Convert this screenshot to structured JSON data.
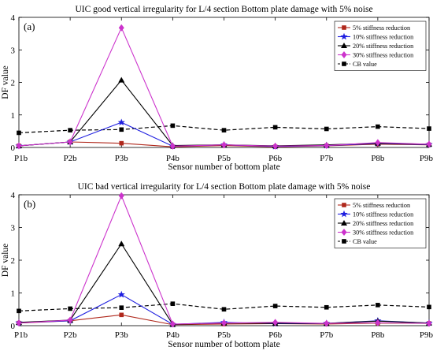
{
  "chart_data": [
    {
      "type": "line",
      "panel_label": "(a)",
      "title": "UIC good vertical irregularity for L/4 section Bottom plate damage with 5% noise",
      "xlabel": "Sensor number of  bottom plate",
      "ylabel": "DF value",
      "categories": [
        "P1b",
        "P2b",
        "P3b",
        "P4b",
        "P5b",
        "P6b",
        "P7b",
        "P8b",
        "P9b"
      ],
      "ylim": [
        0,
        4
      ],
      "yticks": [
        "0",
        "1",
        "2",
        "3",
        "4"
      ],
      "grid": false,
      "legend_position": "top-right",
      "series": [
        {
          "name": "5% stiffness reduction",
          "color": "#b0281c",
          "marker": "square",
          "dash": "solid",
          "values": [
            0.05,
            0.17,
            0.13,
            0.02,
            0.06,
            0.02,
            0.05,
            0.1,
            0.08
          ]
        },
        {
          "name": "10% stiffness reduction",
          "color": "#1f1fe0",
          "marker": "star",
          "dash": "solid",
          "values": [
            0.05,
            0.17,
            0.77,
            0.04,
            0.08,
            0.03,
            0.06,
            0.12,
            0.09
          ]
        },
        {
          "name": "20% stiffness reduction",
          "color": "#000000",
          "marker": "triangle",
          "dash": "solid",
          "values": [
            0.05,
            0.17,
            2.07,
            0.06,
            0.08,
            0.05,
            0.08,
            0.13,
            0.1
          ]
        },
        {
          "name": "30% stiffness reduction",
          "color": "#cc33cc",
          "marker": "diamond",
          "dash": "solid",
          "values": [
            0.05,
            0.17,
            3.68,
            0.04,
            0.08,
            0.04,
            0.06,
            0.15,
            0.1
          ]
        },
        {
          "name": "CB value",
          "color": "#000000",
          "marker": "filled-square",
          "dash": "dashed",
          "values": [
            0.45,
            0.53,
            0.55,
            0.67,
            0.53,
            0.62,
            0.57,
            0.64,
            0.58
          ]
        }
      ]
    },
    {
      "type": "line",
      "panel_label": "(b)",
      "title": "UIC bad vertical irregularity for L/4 section Bottom plate damage with 5% noise",
      "xlabel": "Sensor number of  bottom plate",
      "ylabel": "DF value",
      "categories": [
        "P1b",
        "P2b",
        "P3b",
        "P4b",
        "P5b",
        "P6b",
        "P7b",
        "P8b",
        "P9b"
      ],
      "ylim": [
        0,
        4
      ],
      "yticks": [
        "0",
        "1",
        "2",
        "3",
        "4"
      ],
      "grid": false,
      "legend_position": "top-right",
      "series": [
        {
          "name": "5% stiffness reduction",
          "color": "#b0281c",
          "marker": "square",
          "dash": "solid",
          "values": [
            0.08,
            0.15,
            0.33,
            0.03,
            0.05,
            0.06,
            0.05,
            0.08,
            0.07
          ]
        },
        {
          "name": "10% stiffness reduction",
          "color": "#1f1fe0",
          "marker": "star",
          "dash": "solid",
          "values": [
            0.09,
            0.15,
            0.95,
            0.04,
            0.1,
            0.06,
            0.07,
            0.15,
            0.08
          ]
        },
        {
          "name": "20% stiffness reduction",
          "color": "#000000",
          "marker": "triangle",
          "dash": "solid",
          "values": [
            0.1,
            0.17,
            2.5,
            0.04,
            0.08,
            0.07,
            0.07,
            0.14,
            0.08
          ]
        },
        {
          "name": "30% stiffness reduction",
          "color": "#cc33cc",
          "marker": "diamond",
          "dash": "solid",
          "values": [
            0.08,
            0.17,
            3.97,
            0.05,
            0.08,
            0.1,
            0.07,
            0.09,
            0.07
          ]
        },
        {
          "name": "CB value",
          "color": "#000000",
          "marker": "filled-square",
          "dash": "dashed",
          "values": [
            0.45,
            0.52,
            0.55,
            0.67,
            0.5,
            0.6,
            0.56,
            0.63,
            0.57
          ]
        }
      ]
    }
  ]
}
